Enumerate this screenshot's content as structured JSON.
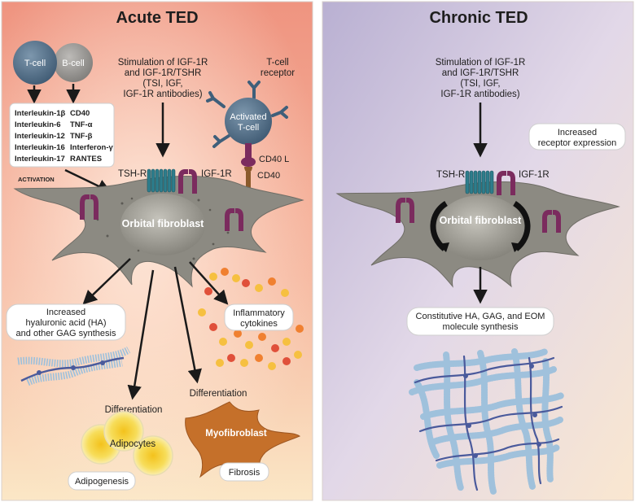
{
  "acute": {
    "title": "Acute TED",
    "tcell": "T-cell",
    "bcell": "B-cell",
    "cytokines_left": [
      "Interleukin-1β",
      "Interleukin-6",
      "Interleukin-12",
      "Interleukin-16",
      "Interleukin-17"
    ],
    "cytokines_right": [
      "CD40",
      "TNF-α",
      "TNF-β",
      "Interferon-γ",
      "RANTES"
    ],
    "activation": "ACTIVATION",
    "stimulation": [
      "Stimulation of IGF-1R",
      "and IGF-1R/TSHR",
      "(TSI, IGF,",
      "IGF-1R antibodies)"
    ],
    "tcell_receptor": [
      "T-cell",
      "receptor"
    ],
    "activated_tcell": [
      "Activated",
      "T-cell"
    ],
    "cd40l": "CD40 L",
    "cd40": "CD40",
    "tshr": "TSH-R",
    "igf1r": "IGF-1R",
    "fibroblast": "Orbital fibroblast",
    "ha_box": [
      "Increased",
      "hyaluronic acid (HA)",
      "and other GAG synthesis"
    ],
    "inflammatory_box": [
      "Inflammatory",
      "cytokines"
    ],
    "differentiation_1": "Differentiation",
    "differentiation_2": "Differentiation",
    "adipocytes": "Adipocytes",
    "adipogenesis": "Adipogenesis",
    "myofibroblast": "Myofibroblast",
    "fibrosis": "Fibrosis"
  },
  "chronic": {
    "title": "Chronic TED",
    "stimulation": [
      "Stimulation of IGF-1R",
      "and IGF-1R/TSHR",
      "(TSI, IGF,",
      "IGF-1R antibodies)"
    ],
    "receptor_box": [
      "Increased",
      "receptor expression"
    ],
    "tshr": "TSH-R",
    "igf1r": "IGF-1R",
    "fibroblast": "Orbital fibroblast",
    "synthesis_box": [
      "Constitutive HA, GAG, and EOM",
      "molecule synthesis"
    ]
  },
  "colors": {
    "acute_bg_top": "#ef9480",
    "acute_bg_bottom": "#fbe7c6",
    "chronic_bg_top": "#c7bfdd",
    "chronic_bg_bottom": "#fae7d0",
    "fibroblast": "#8c8a82",
    "receptor_teal": "#2e7d8c",
    "receptor_purple": "#7b2b5e",
    "tcell": "#5e7a92",
    "bcell": "#9a9896",
    "dot_orange": "#f08030",
    "dot_red": "#e0503a",
    "dot_yellow": "#f6c040",
    "myofibroblast": "#c5702a",
    "adipocyte": "#f7d84a",
    "matrix_blue": "#9cc0dc",
    "matrix_backbone": "#4a5a9c"
  }
}
